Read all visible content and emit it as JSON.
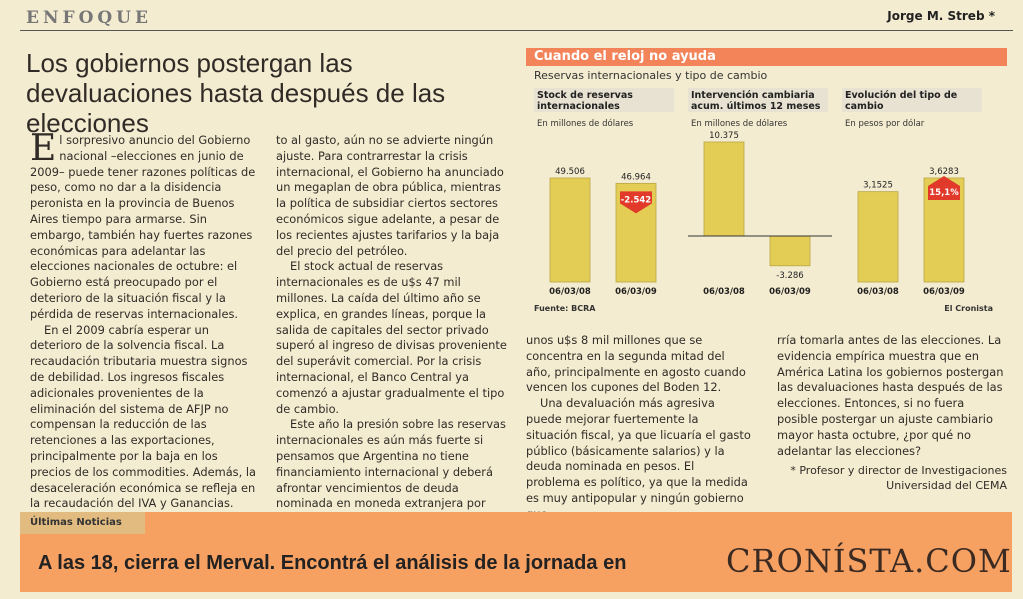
{
  "header": {
    "section": "ENFOQUE",
    "author": "Jorge M. Streb *"
  },
  "headline": "Los gobiernos postergan las devaluaciones hasta después de las elecciones",
  "body": {
    "col1": {
      "dropcap": "E",
      "p1": "l sorpresivo anuncio del Gobierno nacional –elecciones en junio de 2009– puede tener razones políticas de peso, como no dar a la disidencia peronista en la provincia de Buenos Aires tiempo para armarse. Sin embargo, también hay fuertes razones económicas para adelantar las elecciones nacionales de octubre: el Gobierno está preocupado por el deterioro de la situación fiscal y la pérdida de reservas internacionales.",
      "p2": "En el 2009 cabría esperar un deterioro de la solvencia fiscal. La recaudación tributaria muestra signos de debilidad. Los ingresos fiscales adicionales provenientes de la eliminación del sistema de AFJP no compensan la reducción de las retenciones a las exportaciones, principalmente por la baja en los precios de los commodities. Además, la desaceleración económica se refleja en la recaudación del IVA y Ganancias. Con respec-"
    },
    "col2": {
      "p1": "to al gasto, aún no se advierte ningún ajuste. Para contrarrestar la crisis internacional, el Gobierno ha anunciado un megaplan de obra pública, mientras la política de subsidiar ciertos sectores económicos sigue adelante, a pesar de los recientes ajustes tarifarios y la baja del precio del petróleo.",
      "p2": "El stock actual de reservas internacionales es de u$s 47 mil millones. La caída del último año se explica, en grandes líneas, porque la salida de capitales del sector privado superó al ingreso de divisas proveniente del superávit comercial. Por la crisis internacional, el Banco Central ya comenzó a ajustar gradualmente el tipo de cambio.",
      "p3": "Este año la presión sobre las reservas internacionales es aún más fuerte si pensamos que Argentina no tiene financiamiento internacional y deberá afrontar vencimientos de deuda nominada en moneda extranjera por"
    },
    "col3": {
      "p1": "unos u$s 8 mil millones que se concentra en la segunda mitad del año, principalmente en agosto cuando vencen los cupones del Boden 12.",
      "p2": "Una devaluación más agresiva puede mejorar fuertemente la situación fiscal, ya que licuaría el gasto público (básicamente salarios) y la deuda nominada en pesos. El problema es político, ya que la medida es muy antipopular y ningún gobierno que-"
    },
    "col4": {
      "p1": "rría tomarla antes de las elecciones. La evidencia empírica muestra que en América Latina los gobiernos postergan las devaluaciones hasta después de las elecciones. Entonces, si no fuera posible postergar un ajuste cambiario mayor hasta octubre, ¿por qué no adelantar las elecciones?"
    },
    "footnote1": "* Profesor y director de Investigaciones",
    "footnote2": "Universidad del CEMA"
  },
  "chart_data": {
    "type": "bar",
    "title": "Cuando el reloj no ayuda",
    "subtitle": "Reservas internacionales y tipo de cambio",
    "source": "Fuente: BCRA",
    "credit": "El Cronista",
    "colors": {
      "bar": "#e4cd54",
      "barEdge": "#b9a548",
      "arrow": "#e23a2a",
      "header": "#f3845a"
    },
    "panels": [
      {
        "title": "Stock de reservas internacionales",
        "unit": "En millones de dólares",
        "categories": [
          "06/03/08",
          "06/03/09"
        ],
        "values": [
          49506,
          46964
        ],
        "labels": [
          "49.506",
          "46.964"
        ],
        "change": "-2.542",
        "change_dir": "down"
      },
      {
        "title": "Intervención cambiaria acum. últimos 12 meses",
        "unit": "En millones de dólares",
        "categories": [
          "06/03/08",
          "06/03/09"
        ],
        "values": [
          10375,
          -3286
        ],
        "labels": [
          "10.375",
          "-3.286"
        ]
      },
      {
        "title": "Evolución del tipo de cambio",
        "unit": "En pesos por dólar",
        "categories": [
          "06/03/08",
          "06/03/09"
        ],
        "values": [
          3.1525,
          3.6283
        ],
        "labels": [
          "3,1525",
          "3,6283"
        ],
        "change": "15,1%",
        "change_dir": "up"
      }
    ]
  },
  "banner": {
    "tab": "Últimas Noticias",
    "text": "A las 18, cierra el Merval. Encontrá el análisis de la jornada en",
    "logo": "CRONÍSTA.COM"
  }
}
